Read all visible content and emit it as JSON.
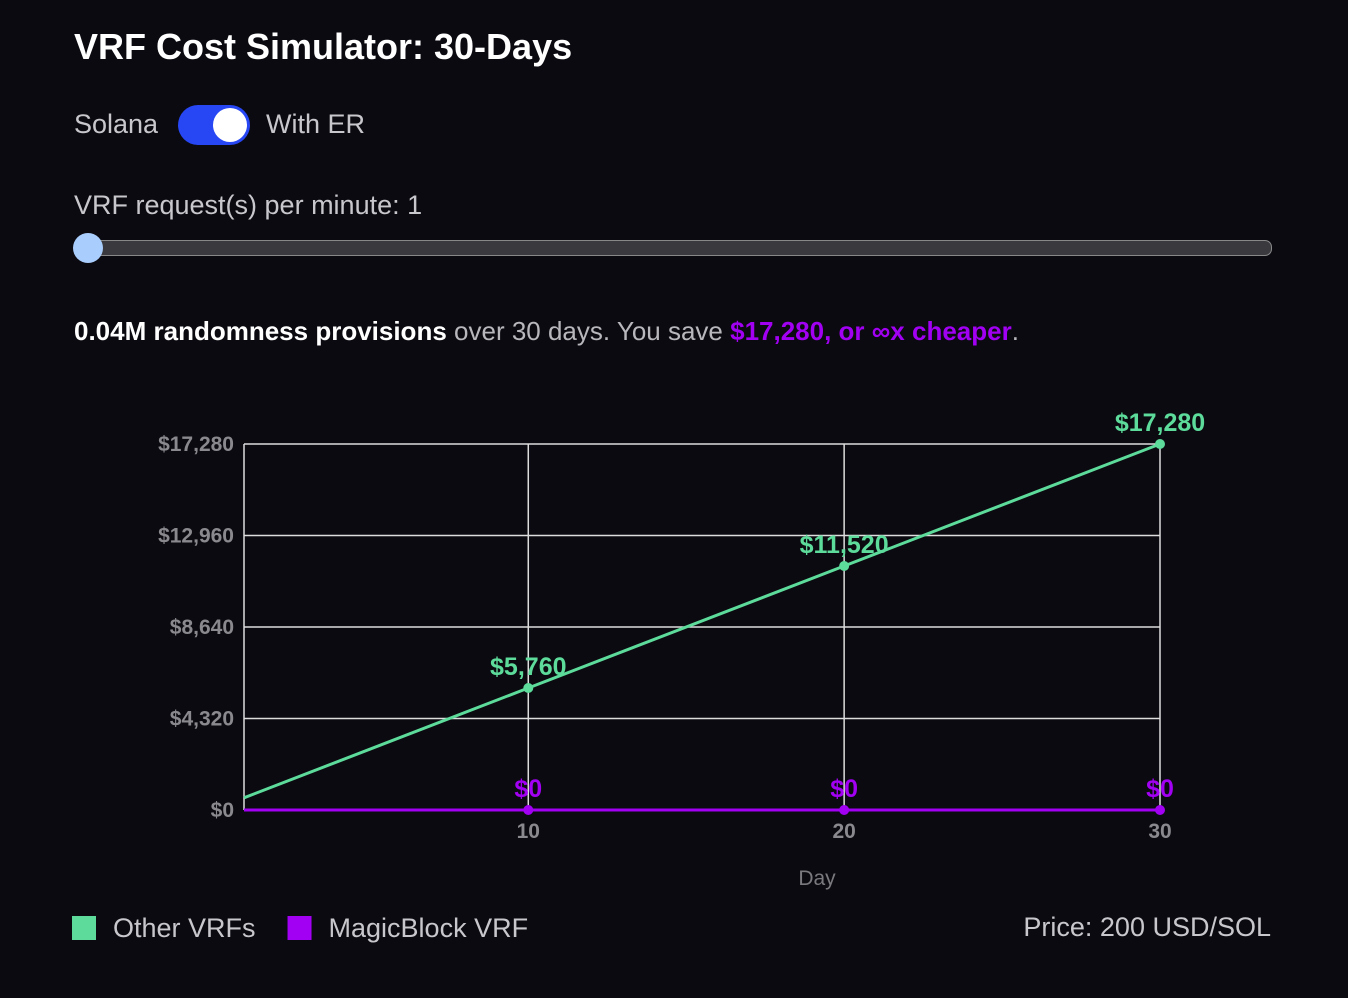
{
  "header": {
    "title": "VRF Cost Simulator: 30-Days"
  },
  "toggle": {
    "left_label": "Solana",
    "right_label": "With ER"
  },
  "slider": {
    "label": "VRF request(s) per minute: 1"
  },
  "summary": {
    "strong": "0.04M randomness provisions",
    "middle": " over 30 days. You save ",
    "highlight": "$17,280, or ∞x cheaper",
    "end": "."
  },
  "footer": {
    "price": "Price: 200 USD/SOL"
  },
  "chart_data": {
    "type": "line",
    "x_label": "Day",
    "x": [
      1,
      10,
      20,
      30
    ],
    "xlim": [
      1,
      30
    ],
    "xticks": [
      10,
      20,
      30
    ],
    "ylim": [
      0,
      17280
    ],
    "yticks": [
      {
        "value": 0,
        "label": "$0"
      },
      {
        "value": 4320,
        "label": "$4,320"
      },
      {
        "value": 8640,
        "label": "$8,640"
      },
      {
        "value": 12960,
        "label": "$12,960"
      },
      {
        "value": 17280,
        "label": "$17,280"
      }
    ],
    "grid": true,
    "series": [
      {
        "name": "Other VRFs",
        "color": "#5ddb9b",
        "values": [
          576,
          5760,
          11520,
          17280
        ],
        "value_labels": [
          null,
          "$5,760",
          "$11,520",
          "$17,280"
        ]
      },
      {
        "name": "MagicBlock VRF",
        "color": "#a100f2",
        "values": [
          0,
          0,
          0,
          0
        ],
        "value_labels": [
          null,
          "$0",
          "$0",
          "$0"
        ]
      }
    ]
  }
}
